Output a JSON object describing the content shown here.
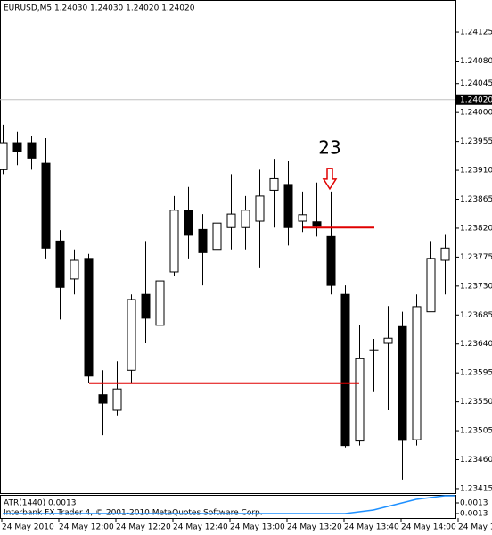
{
  "chart_data": {
    "type": "candlestick",
    "title": "EURUSD,M5  1.24030 1.24030 1.24020 1.24020",
    "x": [
      "24 May 2010",
      null,
      null,
      null,
      "24 May 12:00",
      null,
      null,
      null,
      "24 May 12:20",
      null,
      null,
      null,
      "24 May 12:40",
      null,
      null,
      null,
      "24 May 13:00",
      null,
      null,
      null,
      "24 May 13:20",
      null,
      null,
      null,
      "24 May 13:40",
      null,
      null,
      null,
      "24 May 14:00",
      null,
      null,
      null,
      "24 May 1"
    ],
    "open": [
      1.23911,
      1.23953,
      1.23953,
      1.23921,
      1.238,
      1.23741,
      1.23773,
      1.23561,
      1.23537,
      1.23599,
      1.23717,
      1.23669,
      1.23752,
      1.23848,
      1.23818,
      1.23787,
      1.23821,
      1.23821,
      1.23831,
      1.23879,
      1.23888,
      1.23831,
      1.2383,
      1.23807,
      1.23717,
      1.23489,
      1.2363,
      1.23641,
      1.23667,
      1.23491,
      1.2369,
      1.2377,
      1.23648
    ],
    "high": [
      1.23981,
      1.2397,
      1.23964,
      1.2396,
      1.23817,
      1.23787,
      1.2378,
      1.23599,
      1.23613,
      1.23717,
      1.238,
      1.23759,
      1.2387,
      1.23884,
      1.23842,
      1.23845,
      1.23904,
      1.2387,
      1.23911,
      1.23928,
      1.23925,
      1.23877,
      1.23891,
      1.23877,
      1.23731,
      1.23669,
      1.23648,
      1.23699,
      1.2369,
      1.23717,
      1.238,
      1.23811,
      1.23662
    ],
    "low": [
      1.23904,
      1.23918,
      1.23911,
      1.23773,
      1.23678,
      1.23717,
      1.23579,
      1.23498,
      1.23529,
      1.23579,
      1.23641,
      1.23662,
      1.23745,
      1.23773,
      1.23731,
      1.23759,
      1.23787,
      1.23787,
      1.23759,
      1.23821,
      1.23793,
      1.23814,
      1.23807,
      1.23717,
      1.23479,
      1.23482,
      1.23565,
      1.23537,
      1.23429,
      1.23482,
      1.2369,
      1.23717,
      1.2362
    ],
    "close": [
      1.23953,
      1.23939,
      1.23929,
      1.23789,
      1.23728,
      1.2377,
      1.2359,
      1.23548,
      1.2357,
      1.23709,
      1.2368,
      1.23738,
      1.23848,
      1.23809,
      1.23782,
      1.23828,
      1.23842,
      1.23848,
      1.2387,
      1.23897,
      1.23821,
      1.23841,
      1.23823,
      1.23731,
      1.23482,
      1.23617,
      1.23631,
      1.23649,
      1.2349,
      1.23698,
      1.23773,
      1.23789,
      1.23627
    ],
    "ylim": [
      1.23408,
      1.24175
    ],
    "yticks": [
      1.24125,
      {
        "value": 1.2408,
        "label": "1.24080"
      },
      1.24045,
      {
        "value": 1.24,
        "label": "1.24000"
      },
      1.23955,
      {
        "value": 1.2391,
        "label": "1.23910"
      },
      1.23865,
      {
        "value": 1.2382,
        "label": "1.23820"
      },
      1.23775,
      {
        "value": 1.2373,
        "label": "1.23730"
      },
      1.23685,
      {
        "value": 1.2364,
        "label": "1.23640"
      },
      1.23595,
      {
        "value": 1.2355,
        "label": "1.23550"
      },
      1.23505,
      {
        "value": 1.2346,
        "label": "1.23460"
      },
      1.23415
    ],
    "current_price": {
      "value": 1.2402,
      "label": "1.24020"
    },
    "levels": [
      1.23821,
      1.23579
    ],
    "annotation": "23",
    "indicator": {
      "label": "ATR(1440) 0.0013",
      "color": "#1e90ff",
      "values": [
        0.00129,
        0.00129,
        0.00129,
        0.00129,
        0.00129,
        0.00129,
        0.00129,
        0.00129,
        0.00129,
        0.00129,
        0.00129,
        0.00129,
        0.00129,
        0.00129,
        0.00129,
        0.00129,
        0.00129,
        0.00129,
        0.00129,
        0.00129,
        0.00129,
        0.00129,
        0.00129,
        0.00129,
        0.00129,
        0.001295,
        0.0013,
        0.00131,
        0.00132,
        0.00133,
        0.001335,
        0.00134,
        0.00134
      ],
      "ylim": [
        0.00128,
        0.00134
      ],
      "yticks": [
        {
          "value": 0.00132,
          "label": "0.0013"
        },
        {
          "value": 0.00129,
          "label": "0.0013"
        }
      ]
    },
    "footer": "Interbank FX Trader 4, © 2001-2010 MetaQuotes Software Corp."
  }
}
